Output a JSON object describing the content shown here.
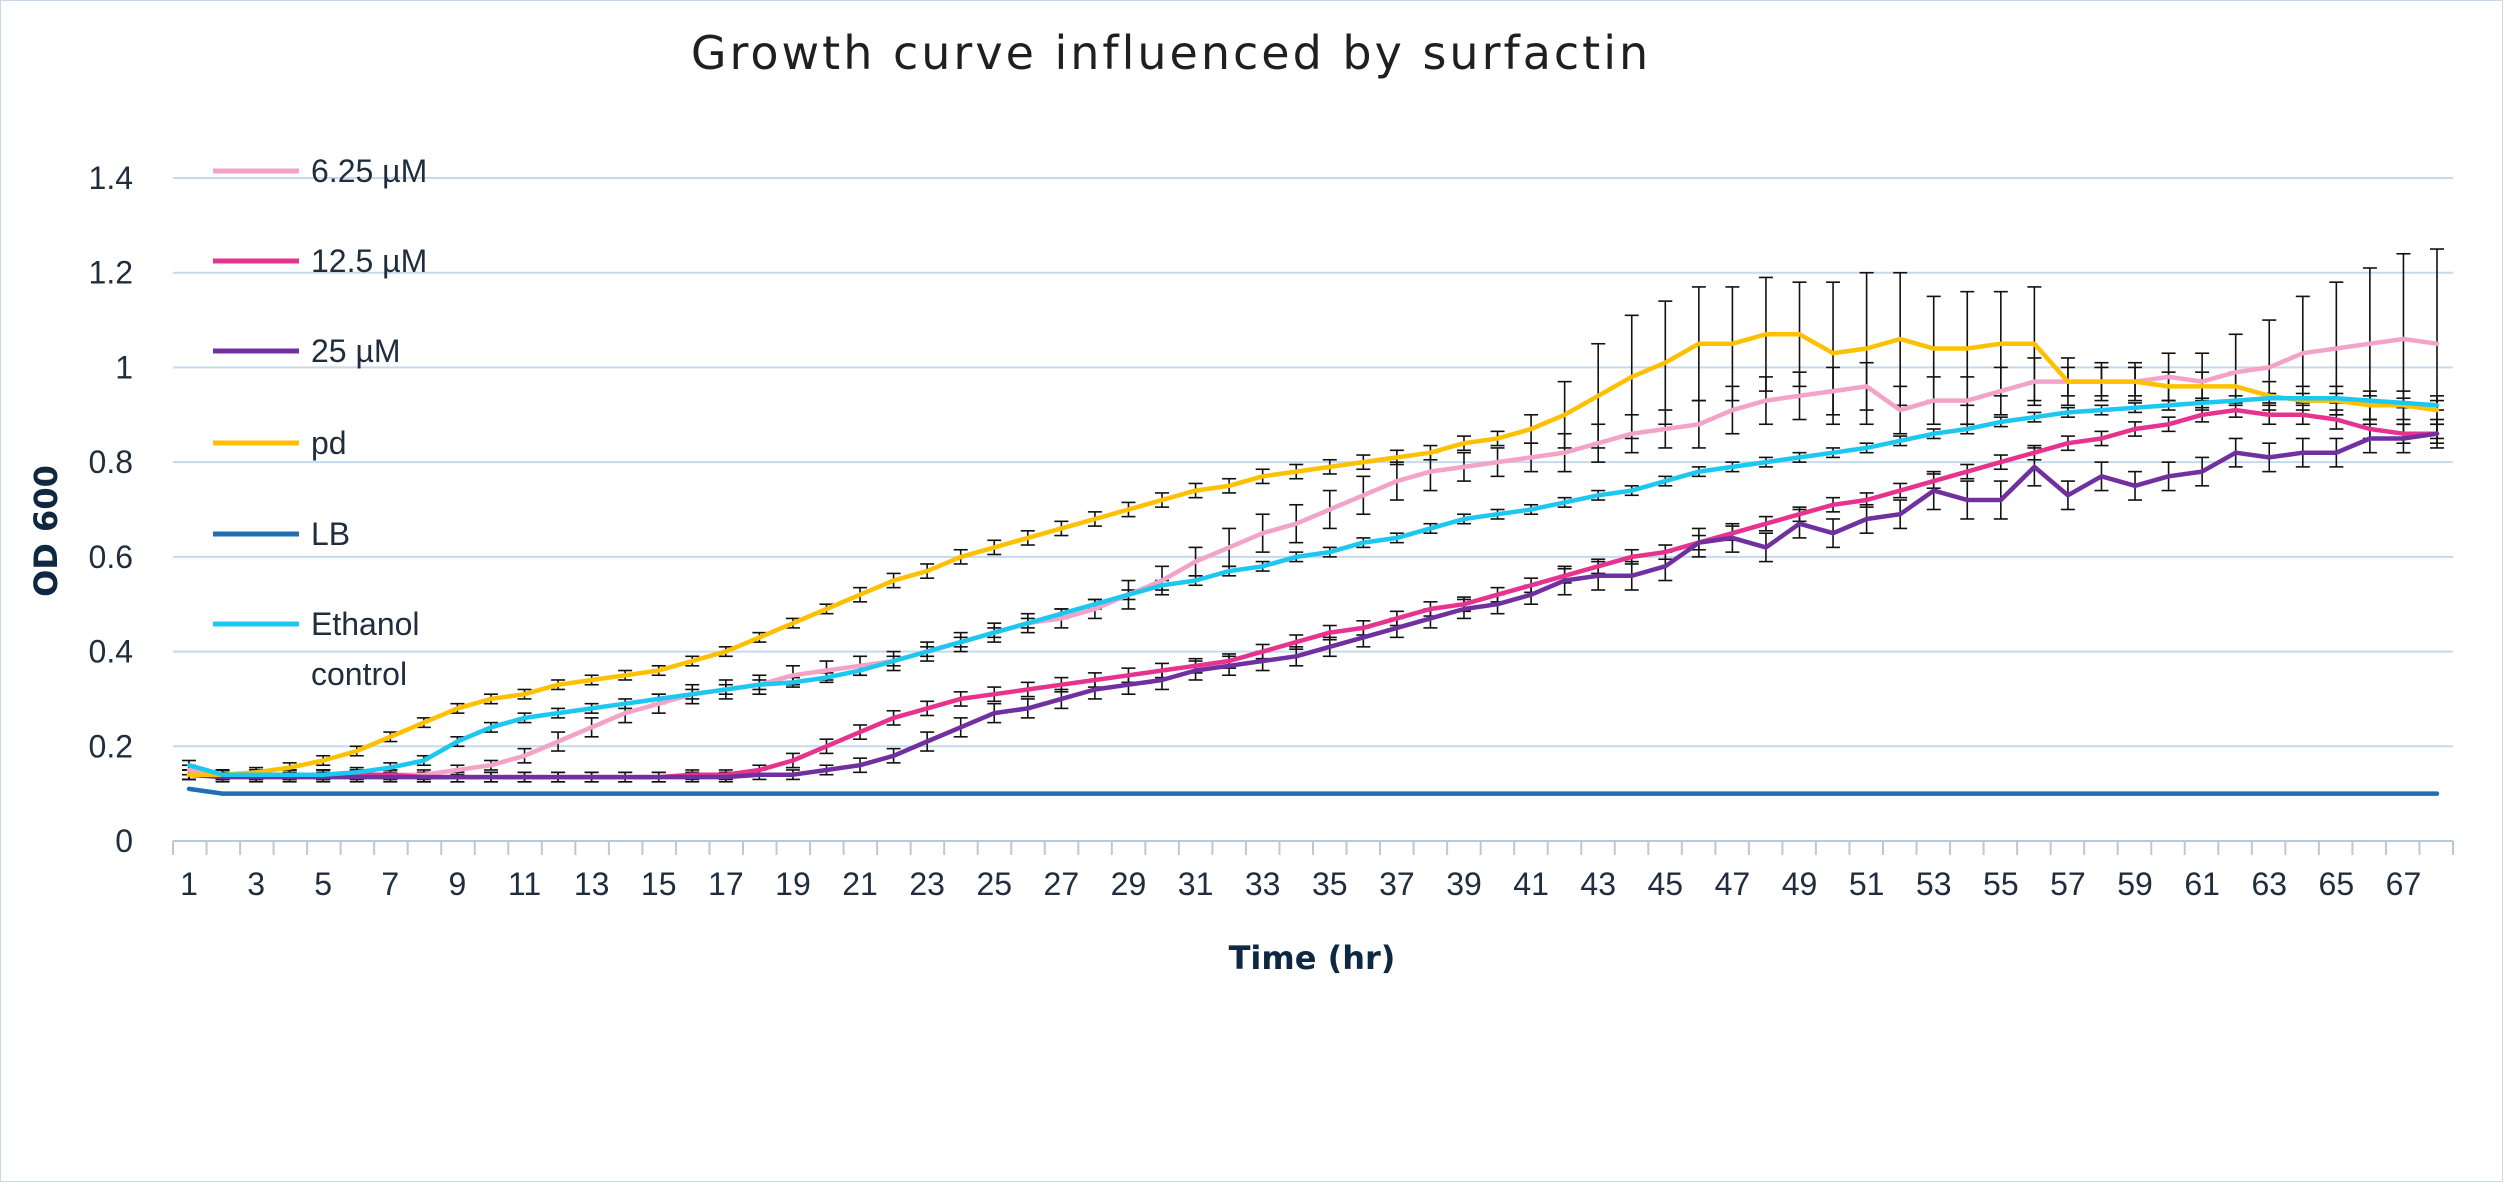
{
  "chart_data": {
    "type": "line",
    "title": "Growth curve influenced by surfactin",
    "xlabel": "Time (hr)",
    "ylabel": "OD 600",
    "ylim": [
      0,
      1.4
    ],
    "yticks": [
      0,
      0.2,
      0.4,
      0.6,
      0.8,
      1,
      1.2,
      1.4
    ],
    "ytick_labels": [
      "0",
      "0.2",
      "0.4",
      "0.6",
      "0.8",
      "1",
      "1.2",
      "1.4"
    ],
    "x": [
      1,
      2,
      3,
      4,
      5,
      6,
      7,
      8,
      9,
      10,
      11,
      12,
      13,
      14,
      15,
      16,
      17,
      18,
      19,
      20,
      21,
      22,
      23,
      24,
      25,
      26,
      27,
      28,
      29,
      30,
      31,
      32,
      33,
      34,
      35,
      36,
      37,
      38,
      39,
      40,
      41,
      42,
      43,
      44,
      45,
      46,
      47,
      48,
      49,
      50,
      51,
      52,
      53,
      54,
      55,
      56,
      57,
      58,
      59,
      60,
      61,
      62,
      63,
      64,
      65,
      66,
      67,
      68
    ],
    "xtick_labels": [
      "1",
      "3",
      "5",
      "7",
      "9",
      "11",
      "13",
      "15",
      "17",
      "19",
      "21",
      "23",
      "25",
      "27",
      "29",
      "31",
      "33",
      "35",
      "37",
      "39",
      "41",
      "43",
      "45",
      "47",
      "49",
      "51",
      "53",
      "55",
      "57",
      "59",
      "61",
      "63",
      "65",
      "67"
    ],
    "grid": true,
    "legend_position": "left",
    "series": [
      {
        "name": "6.25 µM",
        "color": "#f4a3c8",
        "values": [
          0.15,
          0.14,
          0.14,
          0.14,
          0.14,
          0.14,
          0.14,
          0.14,
          0.15,
          0.16,
          0.18,
          0.21,
          0.24,
          0.27,
          0.29,
          0.31,
          0.32,
          0.33,
          0.35,
          0.36,
          0.37,
          0.38,
          0.4,
          0.42,
          0.44,
          0.46,
          0.47,
          0.49,
          0.52,
          0.55,
          0.59,
          0.62,
          0.65,
          0.67,
          0.7,
          0.73,
          0.76,
          0.78,
          0.79,
          0.8,
          0.81,
          0.82,
          0.84,
          0.86,
          0.87,
          0.88,
          0.91,
          0.93,
          0.94,
          0.95,
          0.96,
          0.91,
          0.93,
          0.93,
          0.95,
          0.97,
          0.97,
          0.97,
          0.97,
          0.98,
          0.97,
          0.99,
          1.0,
          1.03,
          1.04,
          1.05,
          1.06,
          1.05
        ],
        "errors": [
          0.01,
          0.01,
          0.01,
          0.01,
          0.01,
          0.01,
          0.01,
          0.01,
          0.01,
          0.01,
          0.015,
          0.02,
          0.02,
          0.02,
          0.02,
          0.02,
          0.02,
          0.02,
          0.02,
          0.02,
          0.02,
          0.02,
          0.02,
          0.02,
          0.02,
          0.02,
          0.02,
          0.02,
          0.03,
          0.03,
          0.03,
          0.04,
          0.04,
          0.04,
          0.04,
          0.04,
          0.04,
          0.04,
          0.03,
          0.03,
          0.03,
          0.04,
          0.04,
          0.04,
          0.04,
          0.05,
          0.05,
          0.05,
          0.05,
          0.05,
          0.05,
          0.05,
          0.05,
          0.05,
          0.05,
          0.05,
          0.05,
          0.04,
          0.04,
          0.05,
          0.06,
          0.08,
          0.1,
          0.12,
          0.14,
          0.16,
          0.18,
          0.2
        ]
      },
      {
        "name": "12.5 µM",
        "color": "#e8338e",
        "values": [
          0.14,
          0.14,
          0.14,
          0.14,
          0.14,
          0.14,
          0.14,
          0.135,
          0.135,
          0.135,
          0.135,
          0.135,
          0.135,
          0.135,
          0.135,
          0.14,
          0.14,
          0.15,
          0.17,
          0.2,
          0.23,
          0.26,
          0.28,
          0.3,
          0.31,
          0.32,
          0.33,
          0.34,
          0.35,
          0.36,
          0.37,
          0.38,
          0.4,
          0.42,
          0.44,
          0.45,
          0.47,
          0.49,
          0.5,
          0.52,
          0.54,
          0.56,
          0.58,
          0.6,
          0.61,
          0.63,
          0.65,
          0.67,
          0.69,
          0.71,
          0.72,
          0.74,
          0.76,
          0.78,
          0.8,
          0.82,
          0.84,
          0.85,
          0.87,
          0.88,
          0.9,
          0.91,
          0.9,
          0.9,
          0.89,
          0.87,
          0.86,
          0.86
        ],
        "errors": [
          0.01,
          0.01,
          0.01,
          0.01,
          0.01,
          0.01,
          0.01,
          0.01,
          0.01,
          0.01,
          0.01,
          0.01,
          0.01,
          0.01,
          0.01,
          0.01,
          0.01,
          0.01,
          0.015,
          0.015,
          0.015,
          0.015,
          0.015,
          0.015,
          0.015,
          0.015,
          0.015,
          0.015,
          0.015,
          0.015,
          0.015,
          0.015,
          0.015,
          0.015,
          0.015,
          0.015,
          0.015,
          0.015,
          0.015,
          0.015,
          0.015,
          0.015,
          0.015,
          0.015,
          0.015,
          0.015,
          0.015,
          0.015,
          0.015,
          0.015,
          0.015,
          0.015,
          0.015,
          0.015,
          0.015,
          0.015,
          0.015,
          0.015,
          0.015,
          0.015,
          0.015,
          0.015,
          0.02,
          0.02,
          0.02,
          0.02,
          0.02,
          0.02
        ]
      },
      {
        "name": "25 µM",
        "color": "#7030a0",
        "values": [
          0.14,
          0.135,
          0.135,
          0.135,
          0.135,
          0.135,
          0.135,
          0.135,
          0.135,
          0.135,
          0.135,
          0.135,
          0.135,
          0.135,
          0.135,
          0.135,
          0.135,
          0.14,
          0.14,
          0.15,
          0.16,
          0.18,
          0.21,
          0.24,
          0.27,
          0.28,
          0.3,
          0.32,
          0.33,
          0.34,
          0.36,
          0.37,
          0.38,
          0.39,
          0.41,
          0.43,
          0.45,
          0.47,
          0.49,
          0.5,
          0.52,
          0.55,
          0.56,
          0.56,
          0.58,
          0.63,
          0.64,
          0.62,
          0.67,
          0.65,
          0.68,
          0.69,
          0.74,
          0.72,
          0.72,
          0.79,
          0.73,
          0.77,
          0.75,
          0.77,
          0.78,
          0.82,
          0.81,
          0.82,
          0.82,
          0.85,
          0.85,
          0.86
        ],
        "errors": [
          0.01,
          0.01,
          0.01,
          0.01,
          0.01,
          0.01,
          0.01,
          0.01,
          0.01,
          0.01,
          0.01,
          0.01,
          0.01,
          0.01,
          0.01,
          0.01,
          0.01,
          0.01,
          0.01,
          0.01,
          0.015,
          0.015,
          0.02,
          0.02,
          0.02,
          0.02,
          0.02,
          0.02,
          0.02,
          0.02,
          0.02,
          0.02,
          0.02,
          0.02,
          0.02,
          0.02,
          0.02,
          0.02,
          0.02,
          0.02,
          0.02,
          0.03,
          0.03,
          0.03,
          0.03,
          0.03,
          0.03,
          0.03,
          0.03,
          0.03,
          0.03,
          0.03,
          0.04,
          0.04,
          0.04,
          0.04,
          0.03,
          0.03,
          0.03,
          0.03,
          0.03,
          0.03,
          0.03,
          0.03,
          0.03,
          0.03,
          0.03,
          0.03
        ]
      },
      {
        "name": "pd",
        "color": "#ffc000",
        "values": [
          0.14,
          0.14,
          0.145,
          0.155,
          0.17,
          0.19,
          0.22,
          0.25,
          0.28,
          0.3,
          0.31,
          0.33,
          0.34,
          0.35,
          0.36,
          0.38,
          0.4,
          0.43,
          0.46,
          0.49,
          0.52,
          0.55,
          0.57,
          0.6,
          0.62,
          0.64,
          0.66,
          0.68,
          0.7,
          0.72,
          0.74,
          0.75,
          0.77,
          0.78,
          0.79,
          0.8,
          0.81,
          0.82,
          0.84,
          0.85,
          0.87,
          0.9,
          0.94,
          0.98,
          1.01,
          1.05,
          1.05,
          1.07,
          1.07,
          1.03,
          1.04,
          1.06,
          1.04,
          1.04,
          1.05,
          1.05,
          0.97,
          0.97,
          0.97,
          0.96,
          0.96,
          0.96,
          0.94,
          0.93,
          0.93,
          0.92,
          0.92,
          0.91
        ],
        "errors": [
          0.01,
          0.01,
          0.01,
          0.01,
          0.01,
          0.01,
          0.01,
          0.01,
          0.01,
          0.01,
          0.01,
          0.01,
          0.01,
          0.01,
          0.01,
          0.01,
          0.01,
          0.01,
          0.01,
          0.01,
          0.015,
          0.015,
          0.015,
          0.015,
          0.015,
          0.015,
          0.015,
          0.015,
          0.015,
          0.015,
          0.015,
          0.015,
          0.015,
          0.015,
          0.015,
          0.015,
          0.015,
          0.015,
          0.015,
          0.015,
          0.03,
          0.07,
          0.11,
          0.13,
          0.13,
          0.12,
          0.12,
          0.12,
          0.11,
          0.15,
          0.16,
          0.14,
          0.11,
          0.12,
          0.11,
          0.12,
          0.03,
          0.03,
          0.03,
          0.03,
          0.03,
          0.03,
          0.03,
          0.03,
          0.03,
          0.03,
          0.03,
          0.03
        ]
      },
      {
        "name": "LB",
        "color": "#1f6fb5",
        "values": [
          0.11,
          0.1,
          0.1,
          0.1,
          0.1,
          0.1,
          0.1,
          0.1,
          0.1,
          0.1,
          0.1,
          0.1,
          0.1,
          0.1,
          0.1,
          0.1,
          0.1,
          0.1,
          0.1,
          0.1,
          0.1,
          0.1,
          0.1,
          0.1,
          0.1,
          0.1,
          0.1,
          0.1,
          0.1,
          0.1,
          0.1,
          0.1,
          0.1,
          0.1,
          0.1,
          0.1,
          0.1,
          0.1,
          0.1,
          0.1,
          0.1,
          0.1,
          0.1,
          0.1,
          0.1,
          0.1,
          0.1,
          0.1,
          0.1,
          0.1,
          0.1,
          0.1,
          0.1,
          0.1,
          0.1,
          0.1,
          0.1,
          0.1,
          0.1,
          0.1,
          0.1,
          0.1,
          0.1,
          0.1,
          0.1,
          0.1,
          0.1,
          0.1
        ],
        "errors": [
          0,
          0,
          0,
          0,
          0,
          0,
          0,
          0,
          0,
          0,
          0,
          0,
          0,
          0,
          0,
          0,
          0,
          0,
          0,
          0,
          0,
          0,
          0,
          0,
          0,
          0,
          0,
          0,
          0,
          0,
          0,
          0,
          0,
          0,
          0,
          0,
          0,
          0,
          0,
          0,
          0,
          0,
          0,
          0,
          0,
          0,
          0,
          0,
          0,
          0,
          0,
          0,
          0,
          0,
          0,
          0,
          0,
          0,
          0,
          0,
          0,
          0,
          0,
          0,
          0,
          0,
          0,
          0
        ]
      },
      {
        "name": "Ethanol control",
        "color": "#1cc7f0",
        "values": [
          0.16,
          0.14,
          0.14,
          0.14,
          0.14,
          0.145,
          0.155,
          0.17,
          0.21,
          0.24,
          0.26,
          0.27,
          0.28,
          0.29,
          0.3,
          0.31,
          0.32,
          0.33,
          0.335,
          0.345,
          0.36,
          0.38,
          0.4,
          0.42,
          0.44,
          0.46,
          0.48,
          0.5,
          0.52,
          0.54,
          0.55,
          0.57,
          0.58,
          0.6,
          0.61,
          0.63,
          0.64,
          0.66,
          0.68,
          0.69,
          0.7,
          0.715,
          0.73,
          0.74,
          0.76,
          0.78,
          0.79,
          0.8,
          0.81,
          0.82,
          0.83,
          0.845,
          0.86,
          0.87,
          0.885,
          0.895,
          0.905,
          0.91,
          0.915,
          0.92,
          0.925,
          0.93,
          0.935,
          0.935,
          0.935,
          0.93,
          0.925,
          0.92
        ],
        "errors": [
          0.01,
          0.01,
          0.01,
          0.01,
          0.01,
          0.01,
          0.01,
          0.01,
          0.01,
          0.01,
          0.01,
          0.01,
          0.01,
          0.01,
          0.01,
          0.01,
          0.01,
          0.01,
          0.01,
          0.01,
          0.01,
          0.01,
          0.01,
          0.01,
          0.01,
          0.01,
          0.01,
          0.01,
          0.01,
          0.01,
          0.01,
          0.01,
          0.01,
          0.01,
          0.01,
          0.01,
          0.01,
          0.01,
          0.01,
          0.01,
          0.01,
          0.01,
          0.01,
          0.01,
          0.01,
          0.01,
          0.01,
          0.01,
          0.01,
          0.01,
          0.01,
          0.01,
          0.01,
          0.01,
          0.01,
          0.01,
          0.01,
          0.01,
          0.01,
          0.01,
          0.01,
          0.01,
          0.01,
          0.01,
          0.01,
          0.01,
          0.01,
          0.01
        ]
      }
    ]
  }
}
